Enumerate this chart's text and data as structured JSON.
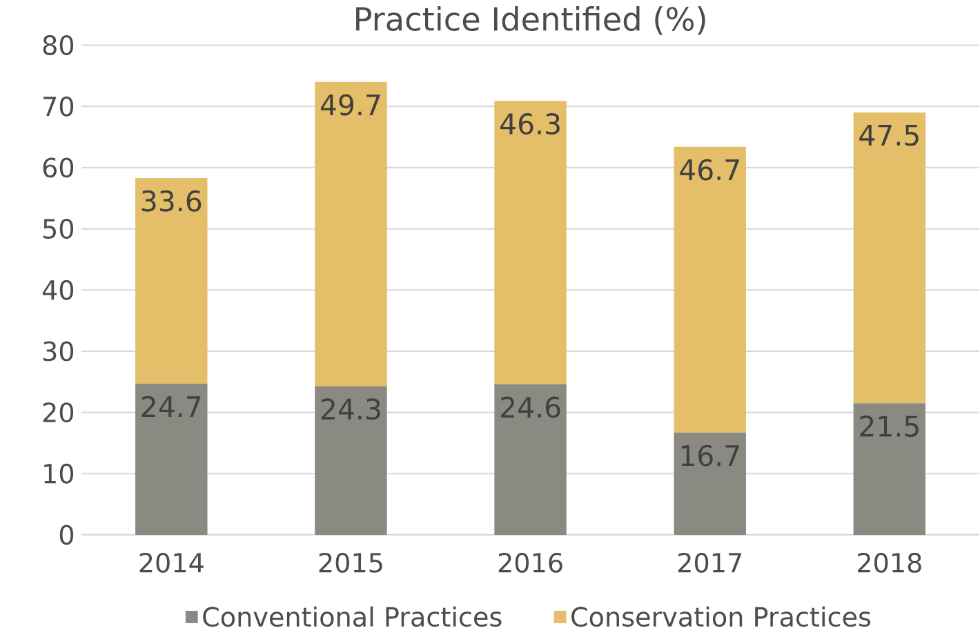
{
  "chart_data": {
    "type": "bar",
    "stacked": true,
    "title": "Practice Identified (%)",
    "categories": [
      "2014",
      "2015",
      "2016",
      "2017",
      "2018"
    ],
    "series": [
      {
        "name": "Conventional Practices",
        "color": "#8a8a82",
        "values": [
          24.7,
          24.3,
          24.6,
          16.7,
          21.5
        ]
      },
      {
        "name": "Conservation Practices",
        "color": "#e4be68",
        "values": [
          33.6,
          49.7,
          46.3,
          46.7,
          47.5
        ]
      }
    ],
    "ylim": [
      0,
      80
    ],
    "yticks": [
      0,
      10,
      20,
      30,
      40,
      50,
      60,
      70,
      80
    ],
    "grid": "y",
    "legend": "bottom",
    "data_labels": true
  }
}
